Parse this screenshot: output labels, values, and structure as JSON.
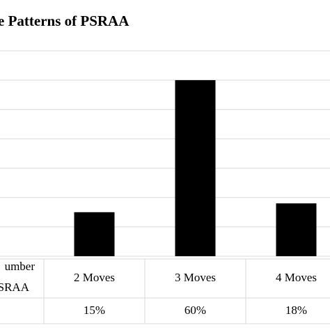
{
  "chart_data": {
    "type": "bar",
    "title": "e Patterns of  PSRAA",
    "categories": [
      "2  Moves",
      "3  Moves",
      "4 Moves"
    ],
    "values": [
      15,
      60,
      18
    ],
    "value_labels": [
      "15%",
      "60%",
      "18%"
    ],
    "color": "#000000",
    "ylim": [
      0,
      70
    ],
    "yticks": [
      0,
      10,
      20,
      30,
      40,
      50,
      60,
      70
    ],
    "grid": true,
    "row_label": [
      "umber",
      "SRAA"
    ]
  }
}
